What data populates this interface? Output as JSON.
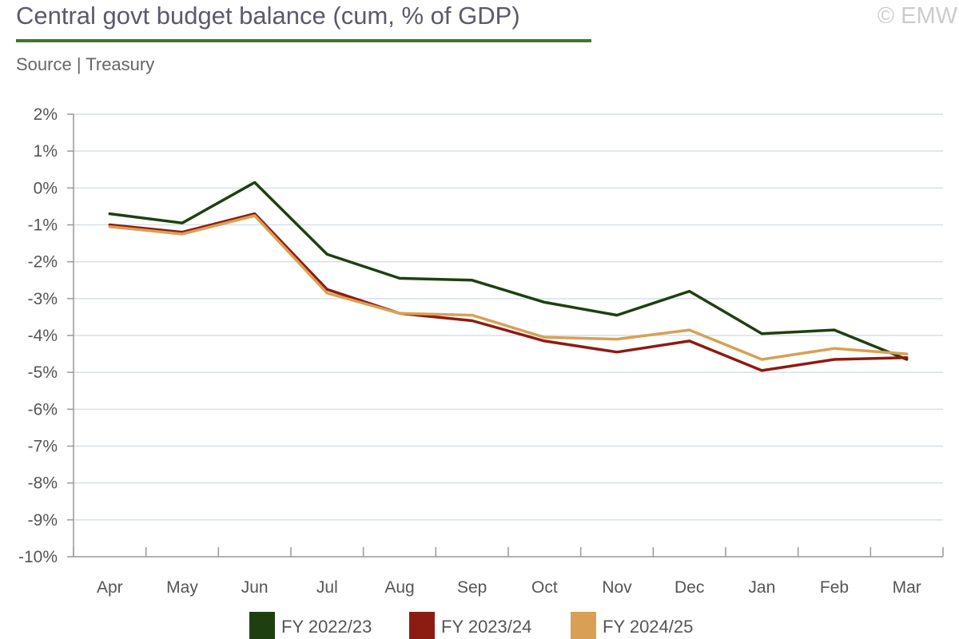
{
  "header": {
    "title": "Central govt budget balance (cum, % of GDP)",
    "source": "Source | Treasury",
    "copyright": "© EMW"
  },
  "colors": {
    "title_rule": "#3a7a2a",
    "grid": "#d6e0e8",
    "axis": "#999999"
  },
  "chart_data": {
    "type": "line",
    "title": "Central govt budget balance (cum, % of GDP)",
    "xlabel": "",
    "ylabel": "",
    "categories": [
      "Apr",
      "May",
      "Jun",
      "Jul",
      "Aug",
      "Sep",
      "Oct",
      "Nov",
      "Dec",
      "Jan",
      "Feb",
      "Mar"
    ],
    "ylim": [
      -10,
      2
    ],
    "yticks": [
      2,
      1,
      0,
      -1,
      -2,
      -3,
      -4,
      -5,
      -6,
      -7,
      -8,
      -9,
      -10
    ],
    "ytick_labels": [
      "2%",
      "1%",
      "0%",
      "-1%",
      "-2%",
      "-3%",
      "-4%",
      "-5%",
      "-6%",
      "-7%",
      "-8%",
      "-9%",
      "-10%"
    ],
    "grid": true,
    "legend_position": "bottom",
    "series": [
      {
        "name": "FY 2022/23",
        "color": "#1e4010",
        "values": [
          -0.7,
          -0.95,
          0.15,
          -1.8,
          -2.45,
          -2.5,
          -3.1,
          -3.45,
          -2.8,
          -3.95,
          -3.85,
          -4.65
        ]
      },
      {
        "name": "FY 2023/24",
        "color": "#8c1c12",
        "values": [
          -1.0,
          -1.2,
          -0.7,
          -2.75,
          -3.4,
          -3.6,
          -4.15,
          -4.45,
          -4.15,
          -4.95,
          -4.65,
          -4.6
        ]
      },
      {
        "name": "FY 2024/25",
        "color": "#d9a055",
        "values": [
          -1.05,
          -1.25,
          -0.75,
          -2.85,
          -3.4,
          -3.45,
          -4.05,
          -4.1,
          -3.85,
          -4.65,
          -4.35,
          -4.5
        ]
      }
    ]
  }
}
